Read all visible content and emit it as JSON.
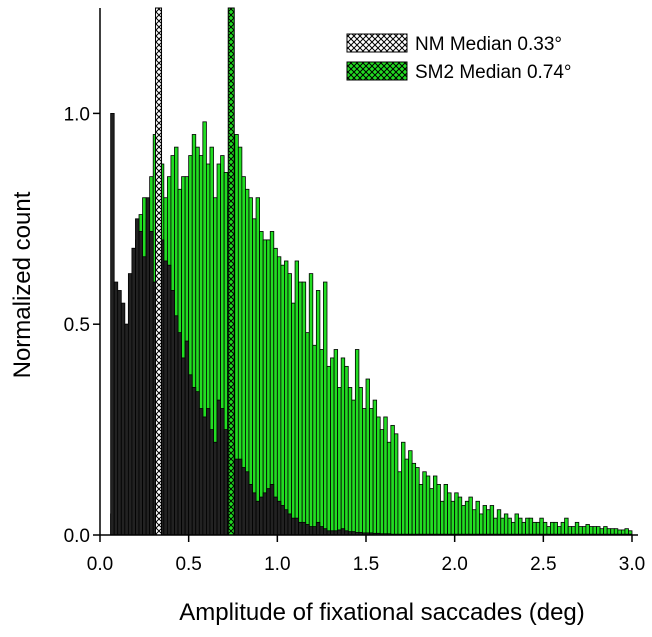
{
  "chart_data": {
    "type": "bar",
    "xlabel": "Amplitude of fixational saccades (deg)",
    "ylabel": "Normalized count",
    "xlim": [
      0.0,
      3.0
    ],
    "ylim": [
      0.0,
      1.25
    ],
    "x_ticks": [
      "0.0",
      "0.5",
      "1.0",
      "1.5",
      "2.0",
      "2.5",
      "3.0"
    ],
    "y_ticks": [
      "0.0",
      "0.5",
      "1.0"
    ],
    "bin_width": 0.02,
    "bin_start": 0.06,
    "legend_position": "top-right",
    "colors": {
      "NM": "#222222",
      "SM2": "#22dd22",
      "edge": "#000000"
    },
    "series": [
      {
        "name": "NM",
        "values": [
          1.0,
          0.6,
          0.58,
          0.55,
          0.5,
          0.62,
          0.68,
          0.75,
          0.72,
          0.66,
          0.8,
          0.72,
          0.6,
          0.75,
          0.7,
          0.65,
          0.64,
          0.58,
          0.52,
          0.48,
          0.42,
          0.46,
          0.38,
          0.35,
          0.34,
          0.3,
          0.28,
          0.3,
          0.25,
          0.22,
          0.32,
          0.3,
          0.25,
          0.22,
          0.2,
          0.18,
          0.18,
          0.16,
          0.15,
          0.12,
          0.1,
          0.08,
          0.09,
          0.1,
          0.11,
          0.12,
          0.09,
          0.08,
          0.07,
          0.06,
          0.05,
          0.04,
          0.04,
          0.03,
          0.03,
          0.025,
          0.02,
          0.02,
          0.03,
          0.02,
          0.015,
          0.01,
          0.01,
          0.01,
          0.012,
          0.015,
          0.01,
          0.008,
          0.008,
          0.006,
          0.006,
          0.005,
          0.005,
          0.005,
          0.004,
          0.004,
          0.003,
          0.003,
          0.003,
          0.002,
          0.002,
          0.002,
          0.002,
          0.002,
          0.002,
          0.002,
          0.002,
          0.002,
          0.002,
          0.002,
          0.002,
          0.002,
          0.002,
          0.002,
          0.002,
          0.002,
          0.002,
          0.002,
          0.002,
          0.002,
          0.002,
          0.002,
          0.002,
          0.002,
          0.002,
          0.002,
          0.002,
          0.002,
          0.002,
          0.002,
          0.002,
          0.002,
          0.002,
          0.002,
          0.002,
          0.002,
          0.002,
          0.002,
          0.002,
          0.002,
          0.002,
          0.002,
          0.002,
          0.002,
          0.002,
          0.002,
          0.002,
          0.002,
          0.002,
          0.002,
          0.002,
          0.002,
          0.002,
          0.002,
          0.002,
          0.002,
          0.002,
          0.002,
          0.002,
          0.002,
          0.002,
          0.002,
          0.002,
          0.002,
          0.002,
          0.002,
          0.002
        ]
      },
      {
        "name": "SM2",
        "values": [
          0.05,
          0.1,
          0.18,
          0.3,
          0.5,
          0.55,
          0.68,
          0.7,
          0.76,
          0.8,
          0.75,
          0.85,
          0.95,
          0.85,
          0.88,
          0.8,
          0.85,
          0.9,
          0.92,
          0.82,
          0.85,
          0.85,
          0.9,
          0.95,
          0.92,
          0.9,
          0.98,
          0.88,
          0.92,
          0.8,
          0.88,
          0.9,
          0.86,
          0.78,
          0.8,
          0.95,
          0.92,
          0.85,
          0.82,
          0.8,
          0.75,
          0.8,
          0.72,
          0.7,
          0.7,
          0.72,
          0.68,
          0.66,
          0.64,
          0.65,
          0.62,
          0.55,
          0.65,
          0.6,
          0.6,
          0.48,
          0.62,
          0.45,
          0.58,
          0.44,
          0.6,
          0.4,
          0.42,
          0.44,
          0.35,
          0.42,
          0.4,
          0.35,
          0.32,
          0.44,
          0.35,
          0.3,
          0.37,
          0.3,
          0.32,
          0.28,
          0.25,
          0.28,
          0.22,
          0.26,
          0.24,
          0.15,
          0.22,
          0.18,
          0.2,
          0.17,
          0.16,
          0.12,
          0.15,
          0.14,
          0.11,
          0.14,
          0.12,
          0.08,
          0.12,
          0.1,
          0.08,
          0.1,
          0.09,
          0.07,
          0.08,
          0.09,
          0.06,
          0.08,
          0.05,
          0.07,
          0.06,
          0.07,
          0.04,
          0.06,
          0.04,
          0.05,
          0.04,
          0.03,
          0.05,
          0.04,
          0.03,
          0.04,
          0.04,
          0.03,
          0.03,
          0.04,
          0.03,
          0.02,
          0.03,
          0.03,
          0.02,
          0.03,
          0.04,
          0.02,
          0.02,
          0.03,
          0.02,
          0.02,
          0.025,
          0.02,
          0.02,
          0.02,
          0.015,
          0.02,
          0.015,
          0.015,
          0.015,
          0.012,
          0.012,
          0.015,
          0.01,
          0.01
        ]
      }
    ],
    "medians": [
      {
        "name": "NM",
        "value": 0.33,
        "legend_label": "NM Median 0.33°"
      },
      {
        "name": "SM2",
        "value": 0.74,
        "legend_label": "SM2 Median 0.74°"
      }
    ]
  }
}
